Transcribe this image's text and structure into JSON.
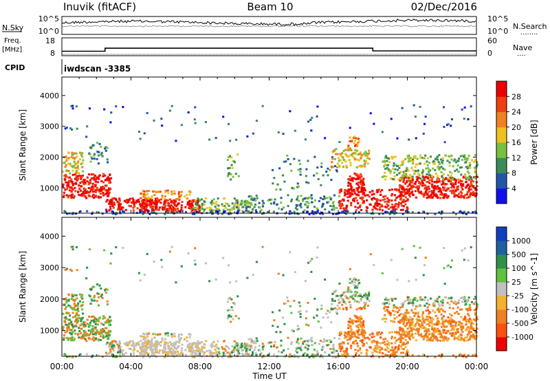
{
  "header": {
    "station": "Inuvik (fitACF)",
    "beam": "Beam 10",
    "date": "02/Dec/2016"
  },
  "strip_labels": {
    "nsky": "N.Sky",
    "nsearch": "N.Search",
    "nsearch_marker": "........",
    "freq_line1": "Freq.",
    "freq_line2": "[MHz]",
    "nave": "Nave",
    "nave_marker": "....",
    "cpid": "CPID",
    "program": "iwdscan -3385",
    "noise_ticks_left": [
      "10^5",
      "10^0"
    ],
    "noise_ticks_right": [
      "10^5",
      "10^0"
    ],
    "freq_ticks_left": [
      "18",
      "8"
    ],
    "nave_ticks_right": [
      "60",
      "0"
    ]
  },
  "colors": {
    "power_scale": [
      "#1010ee",
      "#2255aa",
      "#3a8a5a",
      "#78c040",
      "#f0c020",
      "#f08020",
      "#f04010",
      "#ee0000"
    ],
    "velocity_scale": [
      "#ee0000",
      "#ff5010",
      "#f08020",
      "#f5b030",
      "#c0c0c0",
      "#60c040",
      "#30904a",
      "#2060a0",
      "#1040c0"
    ],
    "gray_ground": "#b8b8b8"
  },
  "chart_data": [
    {
      "type": "heatmap",
      "title": "",
      "xlabel": "Time UT",
      "ylabel": "Slant Range [km]",
      "x_ticks": [
        "00:00",
        "04:00",
        "08:00",
        "12:00",
        "16:00",
        "20:00",
        "00:00"
      ],
      "xlim": [
        0,
        24
      ],
      "y_ticks": [
        "1000",
        "2000",
        "3000",
        "4000"
      ],
      "ylim": [
        180,
        4600
      ],
      "colorbar": {
        "label": "Power [dB]",
        "ticks": [
          "4",
          "8",
          "12",
          "16",
          "20",
          "24",
          "28"
        ],
        "range": [
          0,
          32
        ]
      }
    },
    {
      "type": "heatmap",
      "title": "",
      "xlabel": "Time UT",
      "ylabel": "Slant Range [km]",
      "x_ticks": [
        "00:00",
        "04:00",
        "08:00",
        "12:00",
        "16:00",
        "20:00",
        "00:00"
      ],
      "xlim": [
        0,
        24
      ],
      "y_ticks": [
        "1000",
        "2000",
        "3000",
        "4000"
      ],
      "ylim": [
        180,
        4600
      ],
      "colorbar": {
        "label": "Velocity [m s^-1]",
        "ticks": [
          "-1000",
          "-500",
          "-100",
          "-25",
          "25",
          "100",
          "500",
          "1000"
        ],
        "range": [
          -1000,
          1000
        ]
      }
    },
    {
      "type": "line",
      "series": [
        {
          "name": "Freq.",
          "units": "MHz",
          "x": [
            0,
            2.5,
            2.5,
            18,
            18,
            24
          ],
          "values": [
            10.5,
            10.5,
            12.2,
            12.2,
            10.7,
            10.7
          ]
        }
      ],
      "ylim": [
        8,
        18
      ]
    }
  ]
}
